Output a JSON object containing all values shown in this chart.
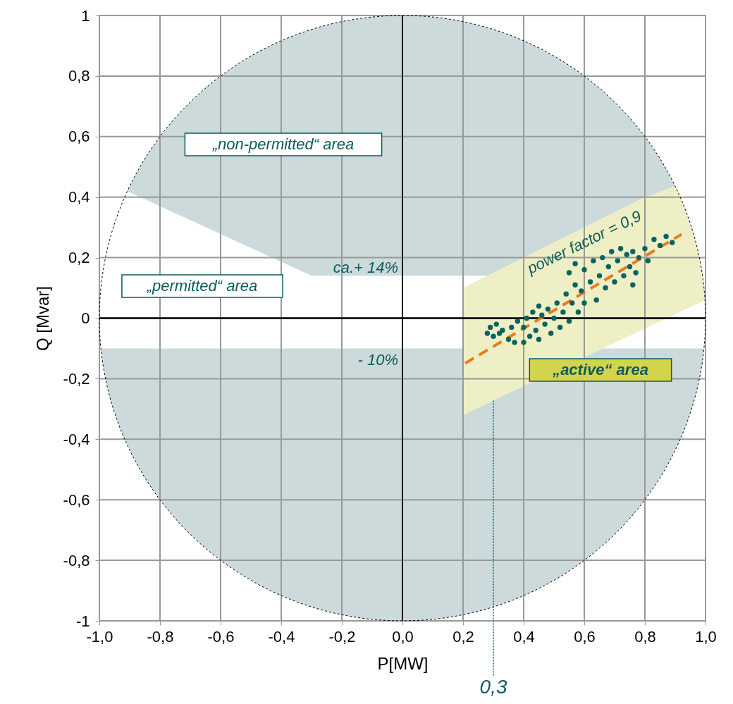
{
  "chart_data": {
    "type": "scatter",
    "xlabel": "P[MW]",
    "ylabel": "Q [Mvar]",
    "xlim": [
      -1.0,
      1.0
    ],
    "ylim": [
      -1,
      1
    ],
    "xticks": [
      {
        "value": -1.0,
        "label": "-1,0"
      },
      {
        "value": -0.8,
        "label": "-0,8"
      },
      {
        "value": -0.6,
        "label": "-0,6"
      },
      {
        "value": -0.4,
        "label": "-0,4"
      },
      {
        "value": -0.2,
        "label": "-0,2"
      },
      {
        "value": 0.0,
        "label": "0,0"
      },
      {
        "value": 0.2,
        "label": "0,2"
      },
      {
        "value": 0.4,
        "label": "0,4"
      },
      {
        "value": 0.6,
        "label": "0,6"
      },
      {
        "value": 0.8,
        "label": "0,8"
      },
      {
        "value": 1.0,
        "label": "1,0"
      }
    ],
    "yticks": [
      -1,
      {
        "value": -0.8,
        "label": "-0,8"
      },
      {
        "value": -0.6,
        "label": "-0,6"
      },
      {
        "value": -0.4,
        "label": "-0,4"
      },
      {
        "value": -0.2,
        "label": "-0,2"
      },
      0,
      {
        "value": 0.2,
        "label": "0,2"
      },
      {
        "value": 0.4,
        "label": "0,4"
      },
      {
        "value": 0.6,
        "label": "0,6"
      },
      {
        "value": 0.8,
        "label": "0,8"
      },
      1
    ],
    "grid": true,
    "series": [
      {
        "color": "#0a6360",
        "marker": "circle",
        "x": [
          0.28,
          0.29,
          0.3,
          0.31,
          0.32,
          0.33,
          0.35,
          0.36,
          0.37,
          0.38,
          0.4,
          0.4,
          0.41,
          0.42,
          0.43,
          0.44,
          0.45,
          0.45,
          0.46,
          0.47,
          0.48,
          0.49,
          0.5,
          0.51,
          0.52,
          0.53,
          0.54,
          0.55,
          0.55,
          0.56,
          0.57,
          0.57,
          0.58,
          0.59,
          0.6,
          0.6,
          0.62,
          0.63,
          0.64,
          0.65,
          0.66,
          0.67,
          0.68,
          0.69,
          0.7,
          0.71,
          0.72,
          0.73,
          0.74,
          0.75,
          0.76,
          0.76,
          0.77,
          0.78,
          0.8,
          0.81,
          0.83,
          0.85,
          0.87,
          0.89
        ],
        "values": [
          -0.05,
          -0.03,
          -0.06,
          -0.02,
          -0.05,
          -0.04,
          -0.07,
          -0.03,
          -0.08,
          -0.01,
          -0.08,
          -0.03,
          0.0,
          -0.06,
          0.02,
          -0.04,
          -0.07,
          0.04,
          0.01,
          -0.02,
          0.03,
          -0.05,
          0.0,
          0.05,
          -0.03,
          0.02,
          0.08,
          -0.01,
          0.15,
          0.05,
          0.11,
          0.18,
          0.02,
          0.09,
          0.16,
          0.05,
          0.12,
          0.19,
          0.06,
          0.14,
          0.2,
          0.1,
          0.17,
          0.22,
          0.12,
          0.19,
          0.23,
          0.14,
          0.21,
          0.17,
          0.22,
          0.11,
          0.15,
          0.2,
          0.23,
          0.19,
          0.26,
          0.24,
          0.27,
          0.25
        ]
      },
      {
        "type": "line",
        "color": "#eb7a1e",
        "line_style": "dashed",
        "x": [
          0.207,
          0.921
        ],
        "values": [
          -0.149,
          0.277
        ]
      }
    ],
    "ref_lines": [
      {
        "axis": "x",
        "value": 0,
        "color": "#000000"
      },
      {
        "axis": "y",
        "value": 0,
        "color": "#000000"
      },
      {
        "axis": "x",
        "value": 0.3,
        "label": "0,3",
        "color": "#0b5c5c",
        "line_style": "dotted"
      }
    ],
    "annotations": [
      "„non-permitted“ area",
      "„permitted“ area",
      "„active“ area",
      "power factor = 0,9",
      "ca.+ 14%",
      "- 10%"
    ]
  }
}
